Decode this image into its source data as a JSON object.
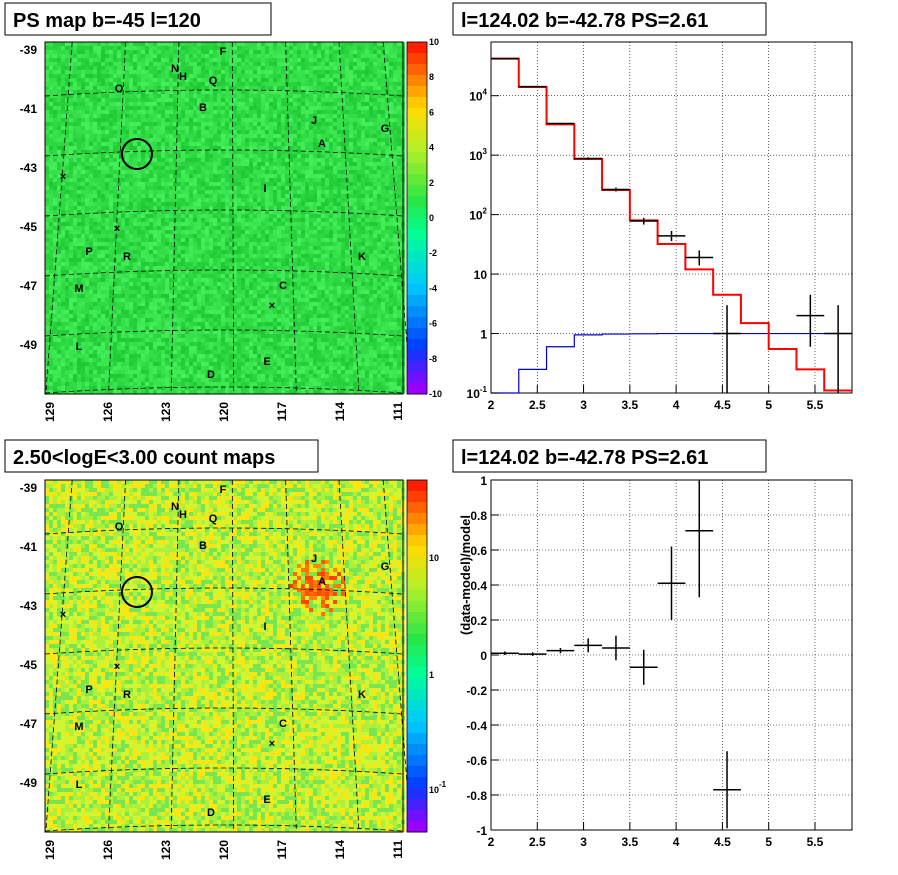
{
  "panels": {
    "ps_map": {
      "title": "PS map b=-45 l=120"
    },
    "spectrum": {
      "title": "l=124.02 b=-42.78 PS=2.61"
    },
    "count_map": {
      "title": "2.50<logE<3.00 count maps"
    },
    "residual": {
      "title": "l=124.02 b=-42.78 PS=2.61"
    }
  },
  "colors": {
    "data": "#000000",
    "model": "#ff0000",
    "background_model": "#0000cc",
    "grid": "#000000"
  },
  "chart_data": [
    {
      "type": "heatmap",
      "title": "PS map b=-45 l=120",
      "xlabel": "",
      "ylabel": "",
      "x_ticks": [
        "129",
        "126",
        "123",
        "120",
        "117",
        "114",
        "111"
      ],
      "y_ticks": [
        "-39",
        "-41",
        "-43",
        "-45",
        "-47",
        "-49"
      ],
      "colorbar": {
        "min": -10,
        "max": 10,
        "ticks": [
          "10",
          "8",
          "6",
          "4",
          "2",
          "0",
          "-2",
          "-4",
          "-6",
          "-8",
          "-10"
        ]
      },
      "sources": [
        "F",
        "N",
        "H",
        "Q",
        "O",
        "B",
        "J",
        "G",
        "A",
        "I",
        "P",
        "R",
        "K",
        "M",
        "C",
        "L",
        "E",
        "D"
      ],
      "marker": "circle"
    },
    {
      "type": "line",
      "title": "l=124.02 b=-42.78 PS=2.61",
      "xlabel": "",
      "ylabel": "",
      "xlim": [
        2,
        5.9
      ],
      "ylim": [
        0.1,
        80000
      ],
      "yscale": "log",
      "x_ticks": [
        "2",
        "2.5",
        "3",
        "3.5",
        "4",
        "4.5",
        "5",
        "5.5"
      ],
      "y_ticks": [
        "10^4",
        "10^3",
        "10^2",
        "10",
        "1",
        "10^-1"
      ],
      "grid": true,
      "bin_edges": [
        2.0,
        2.3,
        2.6,
        2.9,
        3.2,
        3.5,
        3.8,
        4.1,
        4.4,
        4.7,
        5.0,
        5.3,
        5.6,
        5.9
      ],
      "series": [
        {
          "style": "step",
          "color": "red",
          "values": [
            42000,
            14000,
            3300,
            860,
            260,
            80,
            32,
            12,
            4.5,
            1.5,
            0.55,
            0.25,
            0.11
          ]
        },
        {
          "style": "step",
          "color": "blue",
          "values": [
            0.1,
            0.25,
            0.6,
            0.95,
            0.98,
            0.99,
            1.0,
            1.0,
            1.0,
            1.0,
            1.0,
            1.0,
            1.0
          ]
        },
        {
          "style": "errorbar",
          "color": "black",
          "points": [
            {
              "x": 2.15,
              "y": 42000,
              "xerr": 0.15,
              "ylo": 41000,
              "yhi": 43000
            },
            {
              "x": 2.45,
              "y": 14200,
              "xerr": 0.15,
              "ylo": 14000,
              "yhi": 14400
            },
            {
              "x": 2.75,
              "y": 3400,
              "xerr": 0.15,
              "ylo": 3300,
              "yhi": 3500
            },
            {
              "x": 3.05,
              "y": 880,
              "xerr": 0.15,
              "ylo": 840,
              "yhi": 920
            },
            {
              "x": 3.35,
              "y": 265,
              "xerr": 0.15,
              "ylo": 245,
              "yhi": 285
            },
            {
              "x": 3.65,
              "y": 78,
              "xerr": 0.15,
              "ylo": 68,
              "yhi": 88
            },
            {
              "x": 3.95,
              "y": 44,
              "xerr": 0.15,
              "ylo": 36,
              "yhi": 53
            },
            {
              "x": 4.25,
              "y": 19,
              "xerr": 0.15,
              "ylo": 14,
              "yhi": 25
            },
            {
              "x": 4.55,
              "y": 1.0,
              "xerr": 0.15,
              "ylo": 0.1,
              "yhi": 3.0
            },
            {
              "x": 5.45,
              "y": 2.0,
              "xerr": 0.15,
              "ylo": 0.6,
              "yhi": 4.5
            },
            {
              "x": 5.75,
              "y": 1.0,
              "xerr": 0.15,
              "ylo": 0.1,
              "yhi": 3.0
            }
          ]
        }
      ]
    },
    {
      "type": "heatmap",
      "title": "2.50<logE<3.00 count maps",
      "xlabel": "",
      "ylabel": "",
      "x_ticks": [
        "129",
        "126",
        "123",
        "120",
        "117",
        "114",
        "111"
      ],
      "y_ticks": [
        "-39",
        "-41",
        "-43",
        "-45",
        "-47",
        "-49"
      ],
      "colorbar": {
        "scale": "log",
        "ticks": [
          "10",
          "1",
          "10^-1"
        ]
      },
      "sources": [
        "F",
        "N",
        "H",
        "Q",
        "O",
        "B",
        "J",
        "G",
        "A",
        "I",
        "P",
        "R",
        "K",
        "M",
        "C",
        "L",
        "E",
        "D"
      ],
      "marker": "circle"
    },
    {
      "type": "scatter",
      "title": "l=124.02 b=-42.78 PS=2.61",
      "xlabel": "",
      "ylabel": "(data-model)/model",
      "xlim": [
        2,
        5.9
      ],
      "ylim": [
        -1,
        1
      ],
      "x_ticks": [
        "2",
        "2.5",
        "3",
        "3.5",
        "4",
        "4.5",
        "5",
        "5.5"
      ],
      "y_ticks": [
        "1",
        "0.8",
        "0.6",
        "0.4",
        "0.2",
        "0",
        "-0.2",
        "-0.4",
        "-0.6",
        "-0.8",
        "-1"
      ],
      "grid": true,
      "points": [
        {
          "x": 2.15,
          "y": 0.01,
          "xerr": 0.15,
          "yerr": 0.01
        },
        {
          "x": 2.45,
          "y": 0.005,
          "xerr": 0.15,
          "yerr": 0.01
        },
        {
          "x": 2.75,
          "y": 0.025,
          "xerr": 0.15,
          "yerr": 0.015
        },
        {
          "x": 3.05,
          "y": 0.055,
          "xerr": 0.15,
          "yerr": 0.04
        },
        {
          "x": 3.35,
          "y": 0.04,
          "xerr": 0.15,
          "yerr": 0.07
        },
        {
          "x": 3.65,
          "y": -0.07,
          "xerr": 0.15,
          "yerr": 0.1
        },
        {
          "x": 3.95,
          "y": 0.41,
          "xerr": 0.15,
          "yerr": 0.21
        },
        {
          "x": 4.25,
          "y": 0.71,
          "xerr": 0.15,
          "yerr": 0.38
        },
        {
          "x": 4.55,
          "y": -0.77,
          "xerr": 0.15,
          "yerr": 0.22
        }
      ]
    }
  ]
}
